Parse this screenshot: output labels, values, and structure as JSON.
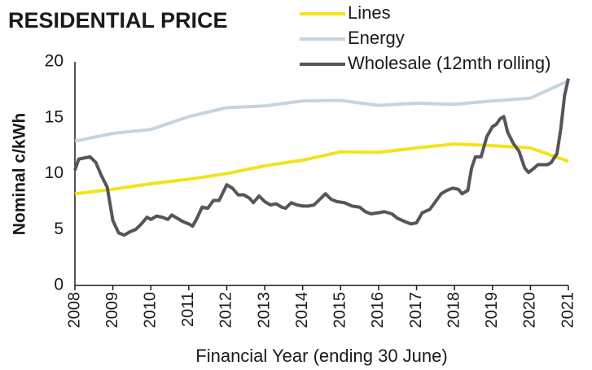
{
  "chart_data": {
    "type": "line",
    "title": "RESIDENTIAL PRICE",
    "x_label": "Financial Year (ending 30 June)",
    "y_label": "Nominal c/kWh",
    "xlim": [
      2008,
      2021
    ],
    "xticks": [
      2008,
      2009,
      2010,
      2011,
      2012,
      2013,
      2014,
      2015,
      2016,
      2017,
      2018,
      2019,
      2020,
      2021
    ],
    "ylim": [
      0,
      20
    ],
    "yticks": [
      0,
      5,
      10,
      15,
      20
    ],
    "grid": false,
    "legend": "top-right",
    "series": [
      {
        "name": "Lines",
        "color": "#f2e31a",
        "x": [
          2008,
          2009,
          2010,
          2011,
          2012,
          2013,
          2014,
          2015,
          2016,
          2017,
          2018,
          2019,
          2020,
          2021
        ],
        "values": [
          8.2,
          8.6,
          9.1,
          9.5,
          10.0,
          10.7,
          11.2,
          11.95,
          11.9,
          12.3,
          12.65,
          12.5,
          12.3,
          11.1
        ]
      },
      {
        "name": "Energy",
        "color": "#c5d4de",
        "x": [
          2008,
          2009,
          2010,
          2011,
          2012,
          2013,
          2014,
          2015,
          2016,
          2017,
          2018,
          2019,
          2020,
          2021
        ],
        "values": [
          12.9,
          13.6,
          13.95,
          15.1,
          15.9,
          16.05,
          16.5,
          16.55,
          16.1,
          16.3,
          16.2,
          16.5,
          16.75,
          18.3
        ]
      },
      {
        "name": "Wholesale (12mth rolling)",
        "color": "#55555c",
        "x": [
          2008.0,
          2008.1,
          2008.25,
          2008.4,
          2008.55,
          2008.7,
          2008.85,
          2009.0,
          2009.15,
          2009.3,
          2009.45,
          2009.6,
          2009.75,
          2009.9,
          2010.0,
          2010.15,
          2010.3,
          2010.45,
          2010.55,
          2010.7,
          2010.85,
          2011.0,
          2011.1,
          2011.2,
          2011.35,
          2011.5,
          2011.65,
          2011.8,
          2011.9,
          2012.0,
          2012.15,
          2012.3,
          2012.45,
          2012.6,
          2012.7,
          2012.85,
          2013.0,
          2013.15,
          2013.3,
          2013.45,
          2013.55,
          2013.7,
          2013.85,
          2014.0,
          2014.15,
          2014.3,
          2014.45,
          2014.6,
          2014.75,
          2014.9,
          2015.1,
          2015.3,
          2015.5,
          2015.65,
          2015.8,
          2016.0,
          2016.15,
          2016.35,
          2016.5,
          2016.7,
          2016.85,
          2017.0,
          2017.15,
          2017.35,
          2017.5,
          2017.65,
          2017.8,
          2017.95,
          2018.1,
          2018.2,
          2018.35,
          2018.45,
          2018.55,
          2018.7,
          2018.85,
          2019.0,
          2019.1,
          2019.2,
          2019.3,
          2019.4,
          2019.55,
          2019.7,
          2019.85,
          2019.95,
          2020.1,
          2020.2,
          2020.35,
          2020.45,
          2020.55,
          2020.7,
          2020.8,
          2020.9,
          2021.0
        ],
        "values": [
          10.3,
          11.3,
          11.4,
          11.5,
          11.0,
          9.8,
          8.8,
          5.8,
          4.7,
          4.5,
          4.8,
          5.0,
          5.5,
          6.1,
          5.9,
          6.2,
          6.1,
          5.9,
          6.3,
          6.0,
          5.7,
          5.5,
          5.3,
          5.9,
          7.0,
          6.9,
          7.6,
          7.6,
          8.3,
          9.0,
          8.7,
          8.1,
          8.1,
          7.8,
          7.4,
          8.0,
          7.5,
          7.2,
          7.3,
          7.0,
          6.9,
          7.4,
          7.2,
          7.1,
          7.1,
          7.2,
          7.7,
          8.2,
          7.7,
          7.5,
          7.4,
          7.1,
          7.0,
          6.6,
          6.4,
          6.5,
          6.6,
          6.4,
          6.0,
          5.7,
          5.5,
          5.6,
          6.5,
          6.8,
          7.5,
          8.2,
          8.5,
          8.7,
          8.6,
          8.2,
          8.5,
          10.5,
          11.5,
          11.5,
          13.3,
          14.2,
          14.4,
          14.9,
          15.1,
          13.7,
          12.7,
          12.0,
          10.5,
          10.1,
          10.5,
          10.8,
          10.8,
          10.8,
          11.0,
          11.8,
          14.0,
          17.0,
          18.5
        ]
      }
    ]
  }
}
